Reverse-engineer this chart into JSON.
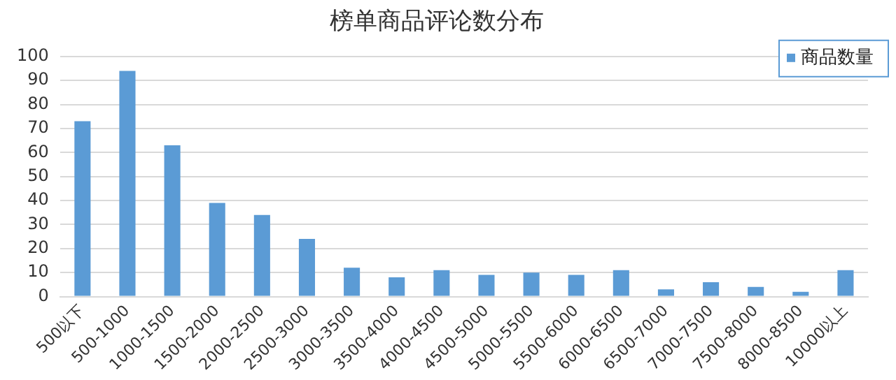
{
  "chart_data": {
    "type": "bar",
    "title": "榜单商品评论数分布",
    "categories": [
      "500以下",
      "500-1000",
      "1000-1500",
      "1500-2000",
      "2000-2500",
      "2500-3000",
      "3000-3500",
      "3500-4000",
      "4000-4500",
      "4500-5000",
      "5000-5500",
      "5500-6000",
      "6000-6500",
      "6500-7000",
      "7000-7500",
      "7500-8000",
      "8000-8500",
      "10000以上"
    ],
    "series": [
      {
        "name": "商品数量",
        "color": "#5b9bd5",
        "values": [
          73,
          94,
          63,
          39,
          34,
          24,
          12,
          8,
          11,
          9,
          10,
          9,
          11,
          3,
          6,
          4,
          2,
          11
        ]
      }
    ],
    "ylim": [
      0,
      100
    ],
    "yticks": [
      0,
      10,
      20,
      30,
      40,
      50,
      60,
      70,
      80,
      90,
      100
    ],
    "grid": "y",
    "legend": "top right"
  }
}
